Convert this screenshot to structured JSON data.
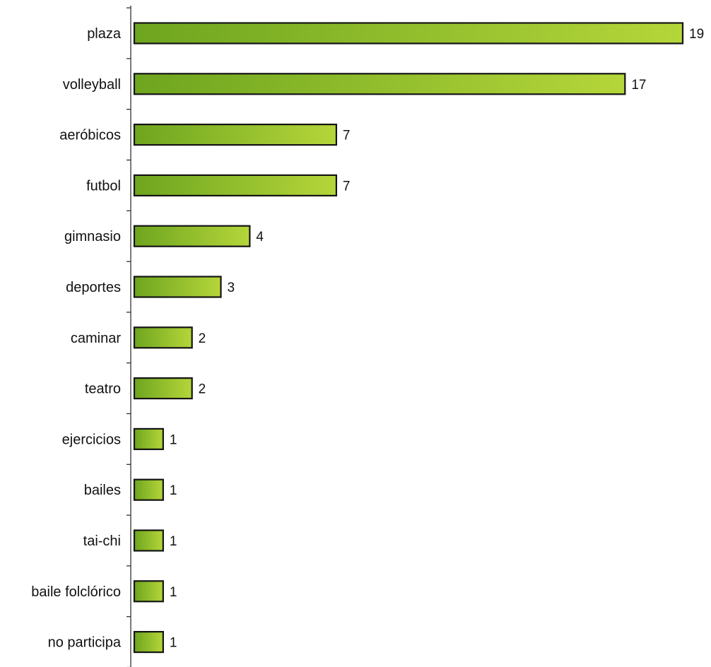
{
  "chart_data": {
    "type": "bar",
    "orientation": "horizontal",
    "categories": [
      "plaza",
      "volleyball",
      "aeróbicos",
      "futbol",
      "gimnasio",
      "deportes",
      "caminar",
      "teatro",
      "ejercicios",
      "bailes",
      "tai-chi",
      "baile folclórico",
      "no participa"
    ],
    "values": [
      19,
      17,
      7,
      7,
      4,
      3,
      2,
      2,
      1,
      1,
      1,
      1,
      1
    ],
    "xlim": [
      0,
      19
    ],
    "grid": false,
    "legend": "none",
    "data_labels": true,
    "colors": {
      "bar_fill_light": "#b5d63a",
      "bar_fill_dark": "#6ea51f",
      "bar_stroke": "#141414",
      "axis": "#222222",
      "text": "#111111"
    }
  }
}
